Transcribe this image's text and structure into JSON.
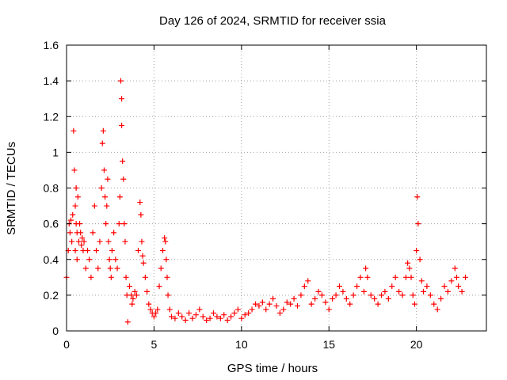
{
  "chart_data": {
    "type": "scatter",
    "title": "Day 126 of 2024, SRMTID for receiver ssia",
    "xlabel": "GPS time / hours",
    "ylabel": "SRMTID / TECUs",
    "xlim": [
      0,
      24
    ],
    "ylim": [
      0,
      1.6
    ],
    "xticks": [
      0,
      5,
      10,
      15,
      20
    ],
    "xtick_labels": [
      "0",
      "5",
      "10",
      "15",
      "20"
    ],
    "yticks": [
      0,
      0.2,
      0.4,
      0.6,
      0.8,
      1.0,
      1.2,
      1.4,
      1.6
    ],
    "ytick_labels": [
      "0",
      "0.2",
      "0.4",
      "0.6",
      "0.8",
      "1",
      "1.2",
      "1.4",
      "1.6"
    ],
    "grid": true,
    "marker": "+",
    "series": [
      {
        "name": "SRMTID",
        "color": "#ff0000",
        "x": [
          0.0,
          0.1,
          0.15,
          0.2,
          0.25,
          0.3,
          0.35,
          0.4,
          0.45,
          0.5,
          0.5,
          0.55,
          0.55,
          0.6,
          0.6,
          0.65,
          0.7,
          0.75,
          0.8,
          0.85,
          0.9,
          0.95,
          1.0,
          1.1,
          1.2,
          1.3,
          1.4,
          1.5,
          1.6,
          1.7,
          1.8,
          1.9,
          2.0,
          2.05,
          2.1,
          2.15,
          2.2,
          2.25,
          2.3,
          2.35,
          2.4,
          2.45,
          2.5,
          2.55,
          2.6,
          2.7,
          2.8,
          2.9,
          3.0,
          3.05,
          3.1,
          3.15,
          3.15,
          3.2,
          3.25,
          3.3,
          3.35,
          3.4,
          3.45,
          3.5,
          3.6,
          3.7,
          3.75,
          3.8,
          3.9,
          4.0,
          4.1,
          4.2,
          4.25,
          4.3,
          4.35,
          4.4,
          4.5,
          4.6,
          4.7,
          4.8,
          4.9,
          5.0,
          5.1,
          5.2,
          5.3,
          5.4,
          5.5,
          5.6,
          5.65,
          5.7,
          5.75,
          5.8,
          5.9,
          6.0,
          6.2,
          6.4,
          6.6,
          6.8,
          7.0,
          7.2,
          7.4,
          7.6,
          7.8,
          8.0,
          8.2,
          8.4,
          8.6,
          8.8,
          9.0,
          9.2,
          9.4,
          9.6,
          9.8,
          10.0,
          10.2,
          10.4,
          10.6,
          10.8,
          11.0,
          11.2,
          11.4,
          11.6,
          11.8,
          12.0,
          12.2,
          12.4,
          12.6,
          12.8,
          13.0,
          13.2,
          13.4,
          13.6,
          13.8,
          14.0,
          14.2,
          14.4,
          14.6,
          14.8,
          15.0,
          15.2,
          15.4,
          15.6,
          15.8,
          16.0,
          16.2,
          16.4,
          16.6,
          16.8,
          17.0,
          17.1,
          17.2,
          17.4,
          17.6,
          17.8,
          18.0,
          18.2,
          18.4,
          18.6,
          18.8,
          19.0,
          19.2,
          19.4,
          19.5,
          19.6,
          19.7,
          19.8,
          19.9,
          20.0,
          20.05,
          20.1,
          20.2,
          20.3,
          20.4,
          20.6,
          20.8,
          21.0,
          21.2,
          21.4,
          21.6,
          21.8,
          22.0,
          22.2,
          22.3,
          22.4,
          22.6,
          22.8
        ],
        "y": [
          0.3,
          0.45,
          0.6,
          0.55,
          0.62,
          0.5,
          0.65,
          1.12,
          0.9,
          0.7,
          0.45,
          0.6,
          0.8,
          0.55,
          0.4,
          0.75,
          0.5,
          0.6,
          0.55,
          0.48,
          0.52,
          0.45,
          0.5,
          0.35,
          0.45,
          0.4,
          0.3,
          0.55,
          0.7,
          0.45,
          0.35,
          0.5,
          0.8,
          1.05,
          1.12,
          0.9,
          0.75,
          0.6,
          0.7,
          0.85,
          0.5,
          0.4,
          0.35,
          0.3,
          0.45,
          0.55,
          0.4,
          0.35,
          0.6,
          0.75,
          1.4,
          1.3,
          1.15,
          0.95,
          0.85,
          0.6,
          0.5,
          0.3,
          0.2,
          0.05,
          0.25,
          0.2,
          0.15,
          0.18,
          0.22,
          0.2,
          0.45,
          0.72,
          0.65,
          0.5,
          0.42,
          0.38,
          0.3,
          0.22,
          0.15,
          0.12,
          0.1,
          0.08,
          0.1,
          0.12,
          0.25,
          0.35,
          0.45,
          0.52,
          0.5,
          0.4,
          0.3,
          0.2,
          0.12,
          0.08,
          0.07,
          0.1,
          0.08,
          0.06,
          0.1,
          0.07,
          0.09,
          0.12,
          0.08,
          0.06,
          0.07,
          0.1,
          0.08,
          0.07,
          0.09,
          0.06,
          0.08,
          0.1,
          0.12,
          0.07,
          0.09,
          0.1,
          0.12,
          0.15,
          0.14,
          0.16,
          0.12,
          0.15,
          0.18,
          0.14,
          0.1,
          0.12,
          0.16,
          0.15,
          0.18,
          0.14,
          0.2,
          0.25,
          0.28,
          0.15,
          0.18,
          0.22,
          0.2,
          0.16,
          0.12,
          0.18,
          0.2,
          0.25,
          0.22,
          0.18,
          0.15,
          0.2,
          0.25,
          0.3,
          0.22,
          0.35,
          0.3,
          0.2,
          0.18,
          0.15,
          0.2,
          0.22,
          0.18,
          0.25,
          0.3,
          0.22,
          0.2,
          0.3,
          0.38,
          0.35,
          0.3,
          0.2,
          0.15,
          0.45,
          0.75,
          0.6,
          0.4,
          0.28,
          0.22,
          0.25,
          0.2,
          0.15,
          0.12,
          0.18,
          0.25,
          0.22,
          0.28,
          0.35,
          0.3,
          0.25,
          0.22,
          0.3
        ]
      }
    ]
  }
}
